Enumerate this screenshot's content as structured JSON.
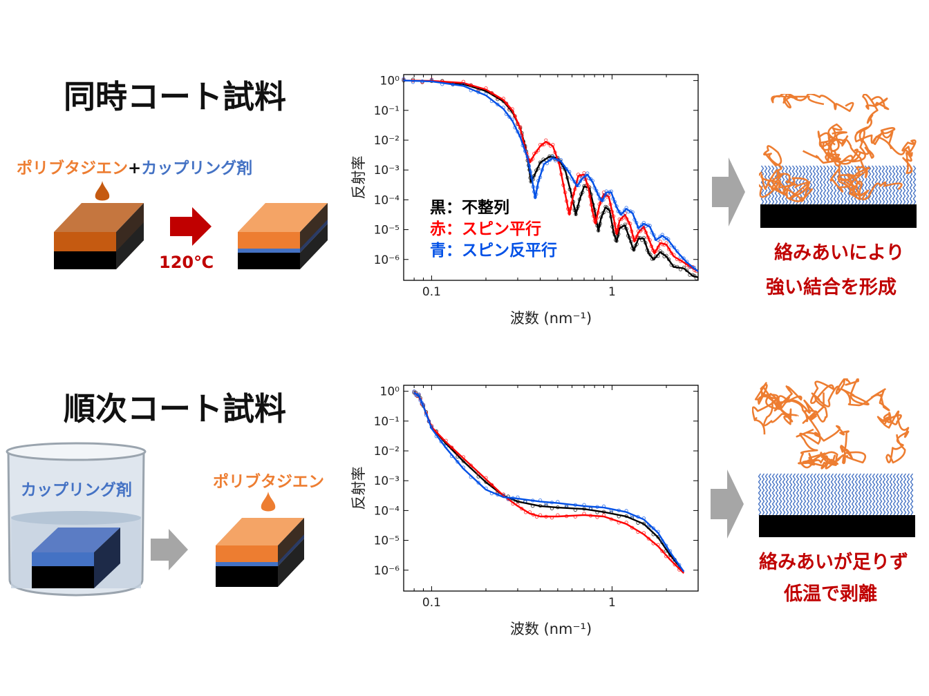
{
  "colors": {
    "polybutadiene": "#ed7d31",
    "coupling_agent": "#4472c4",
    "substrate": "#000000",
    "arrow_red": "#c00000",
    "arrow_gray": "#a6a6a6",
    "series_black": "#000000",
    "series_red": "#ff0000",
    "series_blue": "#0050e6",
    "conclusion_text": "#c00000"
  },
  "top": {
    "title": "同時コート試料",
    "label_polybutadiene": "ポリブタジエン",
    "label_plus": "+",
    "label_coupling": "カップリング剤",
    "temperature": "120℃",
    "conclusion_line1": "絡みあいにより",
    "conclusion_line2": "強い結合を形成"
  },
  "bottom": {
    "title": "順次コート試料",
    "label_coupling": "カップリング剤",
    "label_polybutadiene": "ポリブタジエン",
    "conclusion_line1": "絡みあいが足りず",
    "conclusion_line2": "低温で剥離"
  },
  "legend": {
    "black": "黒：不整列",
    "red": "赤：スピン平行",
    "blue": "青：スピン反平行"
  },
  "chart_data": [
    {
      "type": "line",
      "xscale": "log",
      "yscale": "log",
      "xlabel": "波数 (nm⁻¹)",
      "ylabel": "反射率",
      "xlim": [
        0.07,
        3.0
      ],
      "ylim_exponent": [
        -6.7,
        0.2
      ],
      "x_ticks": [
        {
          "v": 0.1,
          "label": "0.1"
        },
        {
          "v": 1,
          "label": "1"
        }
      ],
      "y_ticks": [
        {
          "e": 0,
          "label": "10⁰"
        },
        {
          "e": -1,
          "label": "10⁻¹"
        },
        {
          "e": -2,
          "label": "10⁻²"
        },
        {
          "e": -3,
          "label": "10⁻³"
        },
        {
          "e": -4,
          "label": "10⁻⁴"
        },
        {
          "e": -5,
          "label": "10⁻⁵"
        },
        {
          "e": -6,
          "label": "10⁻⁶"
        }
      ],
      "series": [
        {
          "name": "黒：不整列",
          "color": "#000000",
          "log10_reflectivity": [
            [
              0.07,
              0
            ],
            [
              0.1,
              -0.02
            ],
            [
              0.15,
              -0.12
            ],
            [
              0.2,
              -0.35
            ],
            [
              0.25,
              -0.7
            ],
            [
              0.28,
              -1.05
            ],
            [
              0.31,
              -1.6
            ],
            [
              0.33,
              -2.2
            ],
            [
              0.345,
              -2.85
            ],
            [
              0.355,
              -3.4
            ],
            [
              0.37,
              -3.2
            ],
            [
              0.4,
              -2.75
            ],
            [
              0.45,
              -2.55
            ],
            [
              0.5,
              -2.6
            ],
            [
              0.55,
              -3.0
            ],
            [
              0.6,
              -3.9
            ],
            [
              0.63,
              -4.5
            ],
            [
              0.66,
              -4.0
            ],
            [
              0.7,
              -3.55
            ],
            [
              0.75,
              -3.6
            ],
            [
              0.8,
              -4.35
            ],
            [
              0.84,
              -5.05
            ],
            [
              0.87,
              -4.6
            ],
            [
              0.92,
              -4.25
            ],
            [
              0.97,
              -4.35
            ],
            [
              1.02,
              -5.1
            ],
            [
              1.06,
              -5.4
            ],
            [
              1.1,
              -4.95
            ],
            [
              1.18,
              -4.85
            ],
            [
              1.25,
              -5.3
            ],
            [
              1.32,
              -5.7
            ],
            [
              1.4,
              -5.3
            ],
            [
              1.5,
              -5.3
            ],
            [
              1.6,
              -5.8
            ],
            [
              1.7,
              -6.0
            ],
            [
              1.85,
              -5.75
            ],
            [
              2.0,
              -5.9
            ],
            [
              2.2,
              -6.25
            ],
            [
              2.5,
              -6.3
            ],
            [
              2.8,
              -6.55
            ],
            [
              3.0,
              -6.6
            ]
          ]
        },
        {
          "name": "赤：スピン平行",
          "color": "#ff0000",
          "log10_reflectivity": [
            [
              0.07,
              0
            ],
            [
              0.1,
              -0.01
            ],
            [
              0.15,
              -0.08
            ],
            [
              0.2,
              -0.3
            ],
            [
              0.25,
              -0.65
            ],
            [
              0.28,
              -1.0
            ],
            [
              0.31,
              -1.6
            ],
            [
              0.33,
              -2.3
            ],
            [
              0.35,
              -2.75
            ],
            [
              0.37,
              -2.5
            ],
            [
              0.4,
              -2.2
            ],
            [
              0.43,
              -2.05
            ],
            [
              0.47,
              -2.2
            ],
            [
              0.51,
              -2.8
            ],
            [
              0.55,
              -3.8
            ],
            [
              0.58,
              -4.5
            ],
            [
              0.61,
              -3.85
            ],
            [
              0.65,
              -3.2
            ],
            [
              0.7,
              -3.15
            ],
            [
              0.74,
              -3.6
            ],
            [
              0.78,
              -4.4
            ],
            [
              0.81,
              -4.8
            ],
            [
              0.85,
              -4.2
            ],
            [
              0.9,
              -3.8
            ],
            [
              0.96,
              -3.9
            ],
            [
              1.02,
              -4.6
            ],
            [
              1.06,
              -5.15
            ],
            [
              1.1,
              -4.7
            ],
            [
              1.18,
              -4.5
            ],
            [
              1.26,
              -4.85
            ],
            [
              1.33,
              -5.4
            ],
            [
              1.4,
              -5.1
            ],
            [
              1.5,
              -4.9
            ],
            [
              1.62,
              -5.4
            ],
            [
              1.72,
              -5.8
            ],
            [
              1.85,
              -5.45
            ],
            [
              2.0,
              -5.5
            ],
            [
              2.2,
              -5.9
            ],
            [
              2.5,
              -6.1
            ],
            [
              2.8,
              -6.3
            ],
            [
              3.0,
              -6.4
            ]
          ]
        },
        {
          "name": "青：スピン反平行",
          "color": "#0050e6",
          "log10_reflectivity": [
            [
              0.07,
              0
            ],
            [
              0.1,
              -0.03
            ],
            [
              0.15,
              -0.18
            ],
            [
              0.2,
              -0.5
            ],
            [
              0.25,
              -0.95
            ],
            [
              0.28,
              -1.35
            ],
            [
              0.31,
              -1.9
            ],
            [
              0.34,
              -2.6
            ],
            [
              0.36,
              -3.3
            ],
            [
              0.375,
              -3.95
            ],
            [
              0.39,
              -3.4
            ],
            [
              0.42,
              -2.8
            ],
            [
              0.47,
              -2.6
            ],
            [
              0.52,
              -2.7
            ],
            [
              0.58,
              -3.1
            ],
            [
              0.64,
              -3.55
            ],
            [
              0.68,
              -3.3
            ],
            [
              0.73,
              -3.15
            ],
            [
              0.78,
              -3.4
            ],
            [
              0.84,
              -3.85
            ],
            [
              0.88,
              -4.05
            ],
            [
              0.93,
              -3.75
            ],
            [
              0.99,
              -3.75
            ],
            [
              1.06,
              -4.25
            ],
            [
              1.12,
              -4.5
            ],
            [
              1.2,
              -4.3
            ],
            [
              1.3,
              -4.45
            ],
            [
              1.4,
              -4.95
            ],
            [
              1.5,
              -4.8
            ],
            [
              1.62,
              -4.9
            ],
            [
              1.75,
              -5.35
            ],
            [
              1.9,
              -5.2
            ],
            [
              2.05,
              -5.35
            ],
            [
              2.3,
              -5.75
            ],
            [
              2.6,
              -6.1
            ],
            [
              3.0,
              -6.4
            ]
          ]
        }
      ]
    },
    {
      "type": "line",
      "xscale": "log",
      "yscale": "log",
      "xlabel": "波数 (nm⁻¹)",
      "ylabel": "反射率",
      "xlim": [
        0.07,
        3.0
      ],
      "ylim_exponent": [
        -6.7,
        0.2
      ],
      "x_ticks": [
        {
          "v": 0.1,
          "label": "0.1"
        },
        {
          "v": 1,
          "label": "1"
        }
      ],
      "y_ticks": [
        {
          "e": 0,
          "label": "10⁰"
        },
        {
          "e": -1,
          "label": "10⁻¹"
        },
        {
          "e": -2,
          "label": "10⁻²"
        },
        {
          "e": -3,
          "label": "10⁻³"
        },
        {
          "e": -4,
          "label": "10⁻⁴"
        },
        {
          "e": -5,
          "label": "10⁻⁵"
        },
        {
          "e": -6,
          "label": "10⁻⁶"
        }
      ],
      "series": [
        {
          "name": "黒",
          "color": "#000000",
          "log10_reflectivity": [
            [
              0.08,
              -0.05
            ],
            [
              0.085,
              -0.15
            ],
            [
              0.09,
              -0.5
            ],
            [
              0.1,
              -1.2
            ],
            [
              0.12,
              -1.75
            ],
            [
              0.15,
              -2.35
            ],
            [
              0.2,
              -3.05
            ],
            [
              0.25,
              -3.5
            ],
            [
              0.3,
              -3.7
            ],
            [
              0.4,
              -3.85
            ],
            [
              0.5,
              -3.9
            ],
            [
              0.7,
              -3.95
            ],
            [
              0.9,
              -4.05
            ],
            [
              1.2,
              -4.2
            ],
            [
              1.5,
              -4.45
            ],
            [
              1.8,
              -4.9
            ],
            [
              2.1,
              -5.5
            ],
            [
              2.5,
              -6.05
            ]
          ]
        },
        {
          "name": "赤",
          "color": "#ff0000",
          "log10_reflectivity": [
            [
              0.08,
              -0.05
            ],
            [
              0.085,
              -0.15
            ],
            [
              0.09,
              -0.5
            ],
            [
              0.1,
              -1.2
            ],
            [
              0.12,
              -1.7
            ],
            [
              0.15,
              -2.25
            ],
            [
              0.2,
              -2.95
            ],
            [
              0.25,
              -3.5
            ],
            [
              0.3,
              -3.85
            ],
            [
              0.35,
              -4.1
            ],
            [
              0.4,
              -4.2
            ],
            [
              0.5,
              -4.2
            ],
            [
              0.7,
              -4.15
            ],
            [
              0.9,
              -4.2
            ],
            [
              1.2,
              -4.45
            ],
            [
              1.5,
              -4.8
            ],
            [
              1.8,
              -5.2
            ],
            [
              2.1,
              -5.65
            ],
            [
              2.5,
              -6.1
            ]
          ]
        },
        {
          "name": "青",
          "color": "#0050e6",
          "log10_reflectivity": [
            [
              0.08,
              -0.05
            ],
            [
              0.085,
              -0.15
            ],
            [
              0.09,
              -0.5
            ],
            [
              0.1,
              -1.25
            ],
            [
              0.12,
              -1.9
            ],
            [
              0.15,
              -2.6
            ],
            [
              0.2,
              -3.3
            ],
            [
              0.25,
              -3.55
            ],
            [
              0.3,
              -3.6
            ],
            [
              0.4,
              -3.7
            ],
            [
              0.5,
              -3.75
            ],
            [
              0.7,
              -3.85
            ],
            [
              0.9,
              -3.9
            ],
            [
              1.2,
              -4.05
            ],
            [
              1.5,
              -4.3
            ],
            [
              1.8,
              -4.75
            ],
            [
              2.1,
              -5.4
            ],
            [
              2.5,
              -6.05
            ]
          ]
        }
      ]
    }
  ]
}
